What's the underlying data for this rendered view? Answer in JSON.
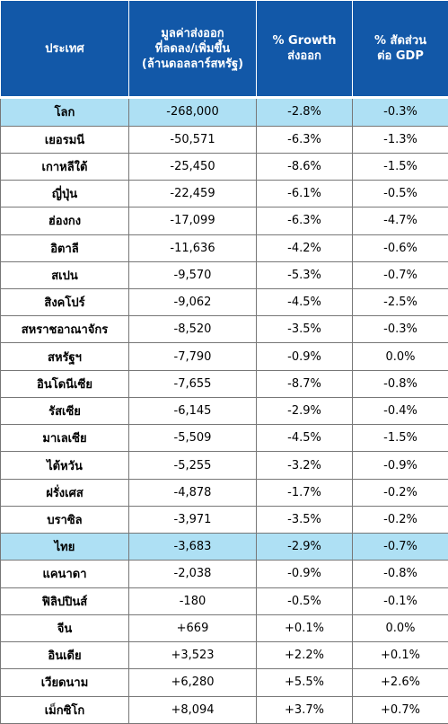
{
  "table": {
    "header": [
      [
        "ประเทศ"
      ],
      [
        "มูลค่าส่งออก",
        "ที่ลดลง/เพิ่มขึ้น",
        "(ล้านดอลลาร์สหรัฐ)"
      ],
      [
        "% Growth",
        "ส่งออก"
      ],
      [
        "% สัดส่วน",
        "ต่อ GDP"
      ]
    ],
    "highlighted_rows": [
      0,
      16
    ],
    "rows": [
      [
        "โลก",
        "-268,000",
        "-2.8%",
        "-0.3%"
      ],
      [
        "เยอรมนี",
        "-50,571",
        "-6.3%",
        "-1.3%"
      ],
      [
        "เกาหลีใต้",
        "-25,450",
        "-8.6%",
        "-1.5%"
      ],
      [
        "ญี่ปุ่น",
        "-22,459",
        "-6.1%",
        "-0.5%"
      ],
      [
        "ฮ่องกง",
        "-17,099",
        "-6.3%",
        "-4.7%"
      ],
      [
        "อิตาลี",
        "-11,636",
        "-4.2%",
        "-0.6%"
      ],
      [
        "สเปน",
        "-9,570",
        "-5.3%",
        "-0.7%"
      ],
      [
        "สิงคโปร์",
        "-9,062",
        "-4.5%",
        "-2.5%"
      ],
      [
        "สหราชอาณาจักร",
        "-8,520",
        "-3.5%",
        "-0.3%"
      ],
      [
        "สหรัฐฯ",
        "-7,790",
        "-0.9%",
        "0.0%"
      ],
      [
        "อินโดนีเซีย",
        "-7,655",
        "-8.7%",
        "-0.8%"
      ],
      [
        "รัสเซีย",
        "-6,145",
        "-2.9%",
        "-0.4%"
      ],
      [
        "มาเลเซีย",
        "-5,509",
        "-4.5%",
        "-1.5%"
      ],
      [
        "ไต้หวัน",
        "-5,255",
        "-3.2%",
        "-0.9%"
      ],
      [
        "ฝรั่งเศส",
        "-4,878",
        "-1.7%",
        "-0.2%"
      ],
      [
        "บราซิล",
        "-3,971",
        "-3.5%",
        "-0.2%"
      ],
      [
        "ไทย",
        "-3,683",
        "-2.9%",
        "-0.7%"
      ],
      [
        "แคนาดา",
        "-2,038",
        "-0.9%",
        "-0.8%"
      ],
      [
        "ฟิลิปปินส์",
        "-180",
        "-0.5%",
        "-0.1%"
      ],
      [
        "จีน",
        "+669",
        "+0.1%",
        "0.0%"
      ],
      [
        "อินเดีย",
        "+3,523",
        "+2.2%",
        "+0.1%"
      ],
      [
        "เวียดนาม",
        "+6,280",
        "+5.5%",
        "+2.6%"
      ],
      [
        "เม็กซิโก",
        "+8,094",
        "+3.7%",
        "+0.7%"
      ]
    ]
  }
}
